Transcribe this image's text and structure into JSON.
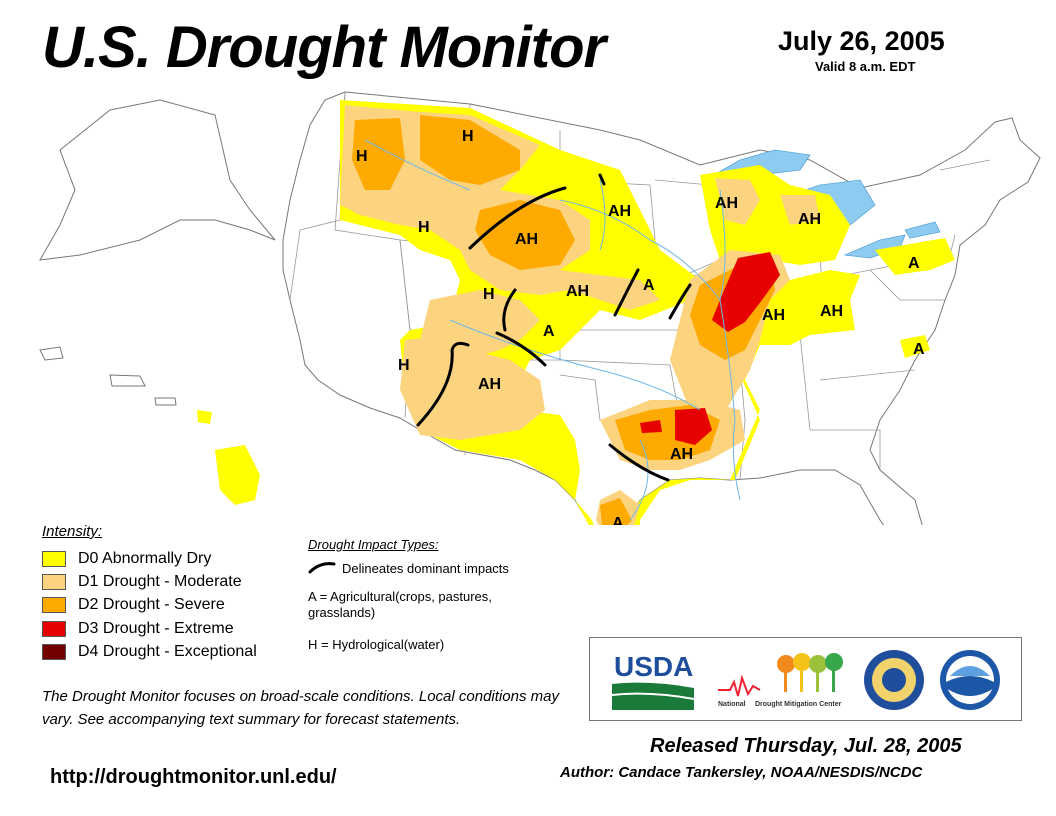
{
  "header": {
    "title": "U.S. Drought Monitor",
    "date": "July 26, 2005",
    "valid": "Valid 8 a.m. EDT"
  },
  "map": {
    "labels": [
      "H",
      "H",
      "H",
      "AH",
      "AH",
      "AH",
      "AH",
      "H",
      "AH",
      "A",
      "A",
      "H",
      "AH",
      "AH",
      "AH",
      "A",
      "A",
      "AH",
      "A"
    ],
    "colors": {
      "d0": "#ffff00",
      "d1": "#fcd37f",
      "d2": "#ffaa00",
      "d3": "#e60000",
      "d4": "#730000",
      "lakes": "#8ecbf0",
      "rivers": "#6fb7e8",
      "land": "#ffffff",
      "boundary": "#888888"
    }
  },
  "legend": {
    "heading": "Intensity:",
    "items": [
      {
        "label": "D0 Abnormally Dry",
        "color": "#ffff00"
      },
      {
        "label": "D1 Drought - Moderate",
        "color": "#fcd37f"
      },
      {
        "label": "D2 Drought - Severe",
        "color": "#ffaa00"
      },
      {
        "label": "D3 Drought - Extreme",
        "color": "#e60000"
      },
      {
        "label": "D4 Drought - Exceptional",
        "color": "#730000"
      }
    ]
  },
  "impacts": {
    "heading": "Drought Impact Types:",
    "line_text": "Delineates dominant impacts",
    "a_text": "A = Agricultural(crops, pastures, grasslands)",
    "h_text": "H = Hydrological(water)"
  },
  "disclaimer": "The Drought Monitor focuses on broad-scale conditions. Local conditions may vary. See accompanying text summary for forecast statements.",
  "url": "http://droughtmonitor.unl.edu/",
  "footer": {
    "released": "Released Thursday, Jul. 28, 2005",
    "author": "Author: Candace Tankersley, NOAA/NESDIS/NCDC"
  },
  "logos": {
    "usda": "USDA",
    "ndmc_part1": "National",
    "ndmc_part2": "Drought Mitigation Center"
  }
}
